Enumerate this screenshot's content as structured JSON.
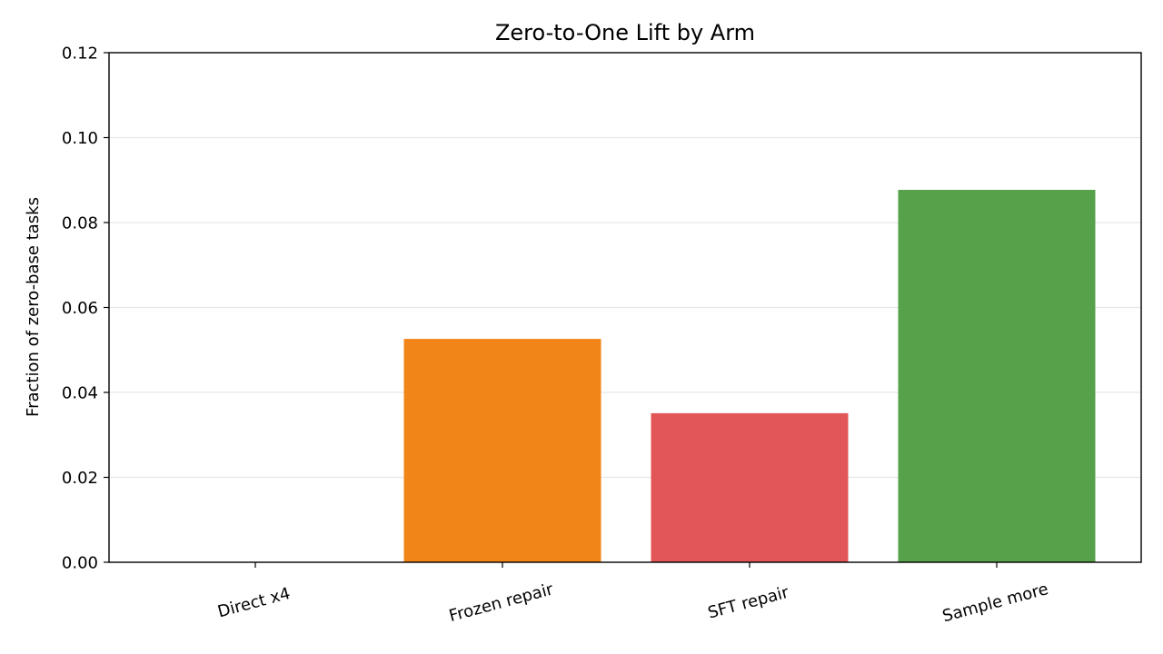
{
  "chart_data": {
    "type": "bar",
    "title": "Zero-to-One Lift by Arm",
    "xlabel": "",
    "ylabel": "Fraction of zero-base tasks",
    "categories": [
      "Direct x4",
      "Frozen repair",
      "SFT repair",
      "Sample more"
    ],
    "values": [
      0.0,
      0.0526,
      0.0351,
      0.0877
    ],
    "bar_colors": [
      "#1f77b4",
      "#f28518",
      "#e35657",
      "#56a14a"
    ],
    "ylim": [
      0,
      0.12
    ],
    "yticks": [
      "0.00",
      "0.02",
      "0.04",
      "0.06",
      "0.08",
      "0.10",
      "0.12"
    ],
    "grid": "horizontal",
    "grid_color": "#e6e6e6",
    "legend": "none"
  }
}
